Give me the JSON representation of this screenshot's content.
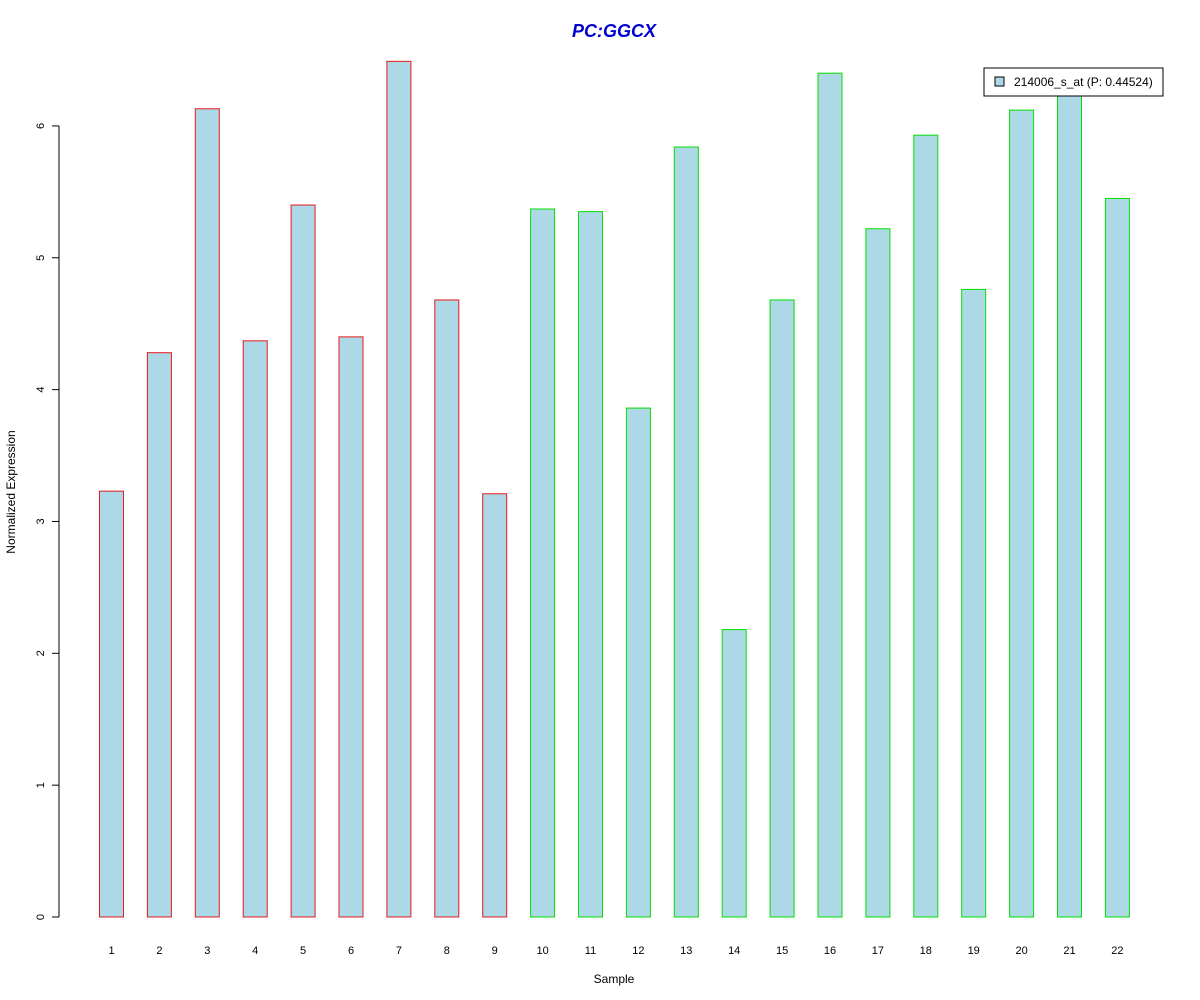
{
  "chart_data": {
    "type": "bar",
    "title": "PC:GGCX",
    "xlabel": "Sample",
    "ylabel": "Normalized Expression",
    "categories": [
      "1",
      "2",
      "3",
      "4",
      "5",
      "6",
      "7",
      "8",
      "9",
      "10",
      "11",
      "12",
      "13",
      "14",
      "15",
      "16",
      "17",
      "18",
      "19",
      "20",
      "21",
      "22"
    ],
    "series": [
      {
        "name": "214006_s_at (P: 0.44524)",
        "values": [
          3.23,
          4.28,
          6.13,
          4.37,
          5.4,
          4.4,
          6.49,
          4.68,
          3.21,
          5.37,
          5.35,
          3.86,
          5.84,
          2.18,
          4.68,
          6.4,
          5.22,
          5.93,
          4.76,
          6.12,
          6.24,
          5.45
        ]
      }
    ],
    "group_border_colors": [
      "#e41a1c",
      "#e41a1c",
      "#e41a1c",
      "#e41a1c",
      "#e41a1c",
      "#e41a1c",
      "#e41a1c",
      "#e41a1c",
      "#e41a1c",
      "#00e000",
      "#00e000",
      "#00e000",
      "#00e000",
      "#00e000",
      "#00e000",
      "#00e000",
      "#00e000",
      "#00e000",
      "#00e000",
      "#00e000",
      "#00e000",
      "#00e000"
    ],
    "ylim": [
      0,
      6.5
    ],
    "yticks": [
      "0",
      "1",
      "2",
      "3",
      "4",
      "5",
      "6"
    ],
    "grid": false,
    "legend_position": "top-right",
    "colors": {
      "bar_fill": "#add8e6",
      "title": "#0000cd",
      "legend_swatch": "#add8e6"
    }
  }
}
